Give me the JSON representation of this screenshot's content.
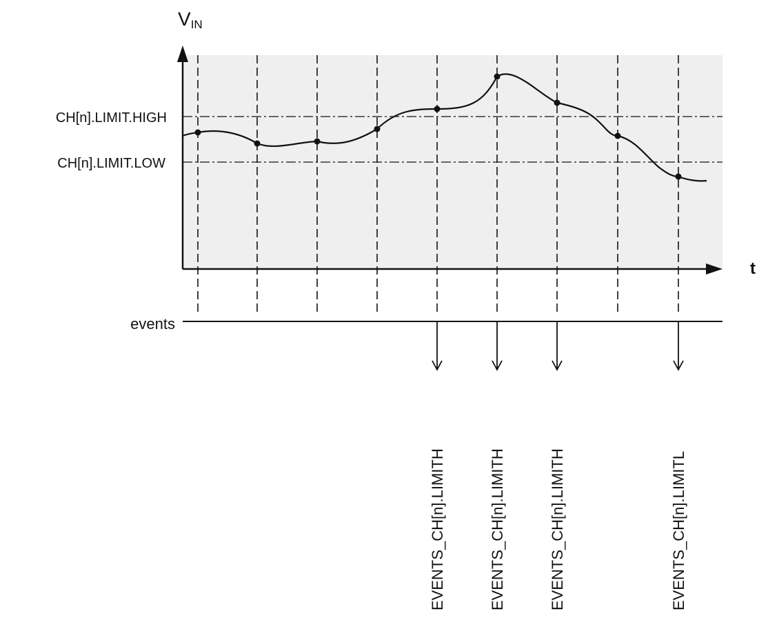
{
  "y_axis_label": "V",
  "y_axis_subscript": "IN",
  "x_axis_label": "t",
  "limit_high_label": "CH[n].LIMIT.HIGH",
  "limit_low_label": "CH[n].LIMIT.LOW",
  "events_row_label": "events",
  "sample_count": 9,
  "events": [
    {
      "sample": 5,
      "label": "EVENTS_CH[n].LIMITH"
    },
    {
      "sample": 6,
      "label": "EVENTS_CH[n].LIMITH"
    },
    {
      "sample": 7,
      "label": "EVENTS_CH[n].LIMITH"
    },
    {
      "sample": 9,
      "label": "EVENTS_CH[n].LIMITL"
    }
  ],
  "colors": {
    "plot_background": "#efefef",
    "line": "#111111"
  }
}
